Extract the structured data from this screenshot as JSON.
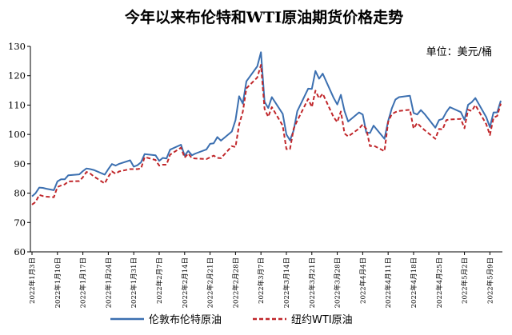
{
  "colors": {
    "brent": "#3b6fb0",
    "wti": "#c0262a",
    "axis": "#000000"
  },
  "chart_data": {
    "type": "line",
    "title": "今年以来布伦特和WTI原油期货价格走势",
    "unit_label": "单位：美元/桶",
    "ylim": [
      60,
      130
    ],
    "yticks": [
      60,
      70,
      80,
      90,
      100,
      110,
      120,
      130
    ],
    "grid": false,
    "legend_position": "bottom-center",
    "x_tick_labels": [
      "2022年1月3日",
      "2022年1月10日",
      "2022年1月17日",
      "2022年1月24日",
      "2022年1月31日",
      "2022年2月7日",
      "2022年2月14日",
      "2022年2月21日",
      "2022年2月28日",
      "2022年3月7日",
      "2022年3月14日",
      "2022年3月21日",
      "2022年3月28日",
      "2022年4月4日",
      "2022年4月11日",
      "2022年4月18日",
      "2022年4月25日",
      "2022年5月2日",
      "2022年5月9日"
    ],
    "series": [
      {
        "name": "伦敦布伦特原油",
        "style": "solid",
        "values": [
          [
            0,
            78.9
          ],
          [
            1,
            80.0
          ],
          [
            2,
            81.9
          ],
          [
            3,
            81.8
          ],
          [
            4,
            81.5
          ],
          [
            6,
            81.0
          ],
          [
            7,
            84.0
          ],
          [
            8,
            84.7
          ],
          [
            9,
            84.7
          ],
          [
            10,
            86.1
          ],
          [
            13,
            86.4
          ],
          [
            14,
            87.5
          ],
          [
            15,
            88.4
          ],
          [
            16,
            88.2
          ],
          [
            17,
            87.9
          ],
          [
            20,
            86.3
          ],
          [
            21,
            88.2
          ],
          [
            22,
            89.9
          ],
          [
            23,
            89.4
          ],
          [
            24,
            90.0
          ],
          [
            27,
            91.2
          ],
          [
            28,
            89.0
          ],
          [
            29,
            89.5
          ],
          [
            30,
            90.5
          ],
          [
            31,
            93.3
          ],
          [
            34,
            92.9
          ],
          [
            35,
            91.0
          ],
          [
            36,
            92.0
          ],
          [
            37,
            91.8
          ],
          [
            38,
            94.8
          ],
          [
            41,
            96.5
          ],
          [
            42,
            92.8
          ],
          [
            43,
            94.4
          ],
          [
            44,
            92.9
          ],
          [
            45,
            93.5
          ],
          [
            48,
            94.9
          ],
          [
            49,
            96.8
          ],
          [
            50,
            97.0
          ],
          [
            51,
            99.1
          ],
          [
            52,
            97.9
          ],
          [
            55,
            101.0
          ],
          [
            56,
            104.9
          ],
          [
            57,
            113.0
          ],
          [
            58,
            110.5
          ],
          [
            59,
            118.1
          ],
          [
            62,
            123.2
          ],
          [
            63,
            128.0
          ],
          [
            64,
            111.1
          ],
          [
            65,
            109.0
          ],
          [
            66,
            112.7
          ],
          [
            69,
            107.0
          ],
          [
            70,
            100.0
          ],
          [
            71,
            98.0
          ],
          [
            72,
            101.4
          ],
          [
            73,
            107.9
          ],
          [
            76,
            115.6
          ],
          [
            77,
            115.5
          ],
          [
            78,
            121.6
          ],
          [
            79,
            119.0
          ],
          [
            80,
            120.7
          ],
          [
            83,
            112.5
          ],
          [
            84,
            110.2
          ],
          [
            85,
            113.5
          ],
          [
            86,
            107.9
          ],
          [
            87,
            104.4
          ],
          [
            90,
            107.5
          ],
          [
            91,
            106.8
          ],
          [
            92,
            100.6
          ],
          [
            93,
            100.5
          ],
          [
            94,
            103.0
          ],
          [
            97,
            98.5
          ],
          [
            98,
            104.6
          ],
          [
            99,
            108.8
          ],
          [
            100,
            111.9
          ],
          [
            101,
            112.7
          ],
          [
            104,
            113.2
          ],
          [
            105,
            107.3
          ],
          [
            106,
            106.8
          ],
          [
            107,
            108.3
          ],
          [
            108,
            107.0
          ],
          [
            111,
            102.3
          ],
          [
            112,
            104.9
          ],
          [
            113,
            105.3
          ],
          [
            114,
            107.6
          ],
          [
            115,
            109.3
          ],
          [
            118,
            107.6
          ],
          [
            119,
            105.0
          ],
          [
            120,
            110.1
          ],
          [
            121,
            111.0
          ],
          [
            122,
            112.4
          ],
          [
            125,
            105.9
          ],
          [
            126,
            102.5
          ],
          [
            127,
            107.5
          ],
          [
            128,
            107.5
          ],
          [
            129,
            111.5
          ]
        ]
      },
      {
        "name": "纽约WTI原油",
        "style": "dashed",
        "values": [
          [
            0,
            76.1
          ],
          [
            1,
            77.0
          ],
          [
            2,
            79.4
          ],
          [
            3,
            79.0
          ],
          [
            4,
            78.8
          ],
          [
            6,
            78.6
          ],
          [
            7,
            82.1
          ],
          [
            8,
            82.6
          ],
          [
            9,
            83.0
          ],
          [
            10,
            84.0
          ],
          [
            13,
            84.1
          ],
          [
            14,
            85.4
          ],
          [
            15,
            87.2
          ],
          [
            16,
            86.7
          ],
          [
            17,
            85.7
          ],
          [
            20,
            83.3
          ],
          [
            21,
            85.6
          ],
          [
            22,
            87.4
          ],
          [
            23,
            86.6
          ],
          [
            24,
            87.4
          ],
          [
            27,
            88.2
          ],
          [
            28,
            88.2
          ],
          [
            29,
            88.2
          ],
          [
            30,
            88.4
          ],
          [
            31,
            92.3
          ],
          [
            34,
            91.3
          ],
          [
            35,
            89.4
          ],
          [
            36,
            89.7
          ],
          [
            37,
            89.7
          ],
          [
            38,
            93.1
          ],
          [
            41,
            95.5
          ],
          [
            42,
            92.1
          ],
          [
            43,
            93.5
          ],
          [
            44,
            91.9
          ],
          [
            45,
            91.8
          ],
          [
            48,
            91.6
          ],
          [
            49,
            92.2
          ],
          [
            50,
            92.8
          ],
          [
            51,
            92.0
          ],
          [
            52,
            91.9
          ],
          [
            55,
            96.0
          ],
          [
            56,
            95.7
          ],
          [
            57,
            103.4
          ],
          [
            58,
            107.7
          ],
          [
            59,
            115.7
          ],
          [
            62,
            119.4
          ],
          [
            63,
            123.7
          ],
          [
            64,
            108.7
          ],
          [
            65,
            106.0
          ],
          [
            66,
            109.3
          ],
          [
            69,
            103.0
          ],
          [
            70,
            95.0
          ],
          [
            71,
            95.0
          ],
          [
            72,
            102.0
          ],
          [
            73,
            104.7
          ],
          [
            76,
            112.1
          ],
          [
            77,
            109.3
          ],
          [
            78,
            114.9
          ],
          [
            79,
            112.3
          ],
          [
            80,
            113.9
          ],
          [
            83,
            105.9
          ],
          [
            84,
            104.2
          ],
          [
            85,
            107.8
          ],
          [
            86,
            100.3
          ],
          [
            87,
            99.3
          ],
          [
            90,
            102.0
          ],
          [
            91,
            103.4
          ],
          [
            92,
            101.9
          ],
          [
            93,
            96.0
          ],
          [
            94,
            96.2
          ],
          [
            97,
            94.3
          ],
          [
            98,
            104.3
          ],
          [
            99,
            106.9
          ],
          [
            100,
            107.6
          ],
          [
            101,
            108.0
          ],
          [
            104,
            108.4
          ],
          [
            105,
            102.0
          ],
          [
            106,
            103.9
          ],
          [
            107,
            102.6
          ],
          [
            108,
            101.5
          ],
          [
            111,
            98.5
          ],
          [
            112,
            101.9
          ],
          [
            113,
            101.7
          ],
          [
            114,
            104.9
          ],
          [
            115,
            105.1
          ],
          [
            118,
            105.3
          ],
          [
            119,
            102.1
          ],
          [
            120,
            108.4
          ],
          [
            121,
            108.0
          ],
          [
            122,
            110.0
          ],
          [
            125,
            103.5
          ],
          [
            126,
            99.8
          ],
          [
            127,
            105.7
          ],
          [
            128,
            106.3
          ],
          [
            129,
            110.5
          ]
        ]
      }
    ]
  }
}
